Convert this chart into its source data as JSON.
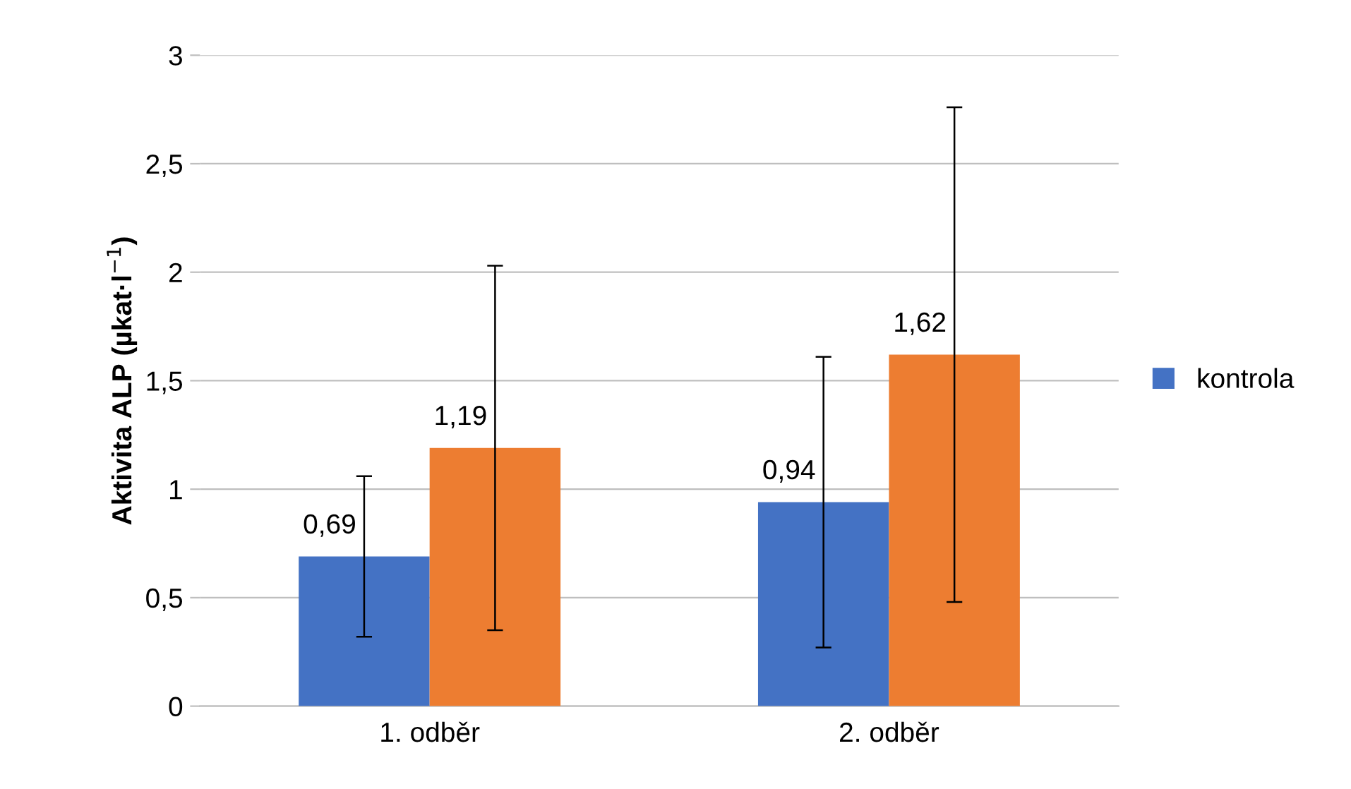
{
  "chart_data": {
    "type": "bar",
    "ylabel": "Aktivita ALP (µkat·l$^{−1}$)",
    "categories": [
      "1. odběr",
      "2. odběr"
    ],
    "series": [
      {
        "name": "kontrola",
        "color": "#4472c4",
        "values": [
          0.69,
          0.94
        ],
        "errors": [
          [
            0.32,
            1.06
          ],
          [
            0.27,
            1.61
          ]
        ],
        "value_labels": [
          "0,69",
          "0,94"
        ]
      },
      {
        "color": "#ed7d31",
        "values": [
          1.19,
          1.62
        ],
        "errors": [
          [
            0.35,
            2.03
          ],
          [
            0.48,
            2.76
          ]
        ],
        "value_labels": [
          "1,19",
          "1,62"
        ]
      }
    ],
    "ylim": [
      0,
      3
    ],
    "yticks": [
      0,
      {
        "value": 0.5,
        "label": "0,5"
      },
      1,
      {
        "value": 1.5,
        "label": "1,5"
      },
      2,
      {
        "value": 2.5,
        "label": "2,5"
      },
      3
    ],
    "grid": "y",
    "legend": "right"
  }
}
